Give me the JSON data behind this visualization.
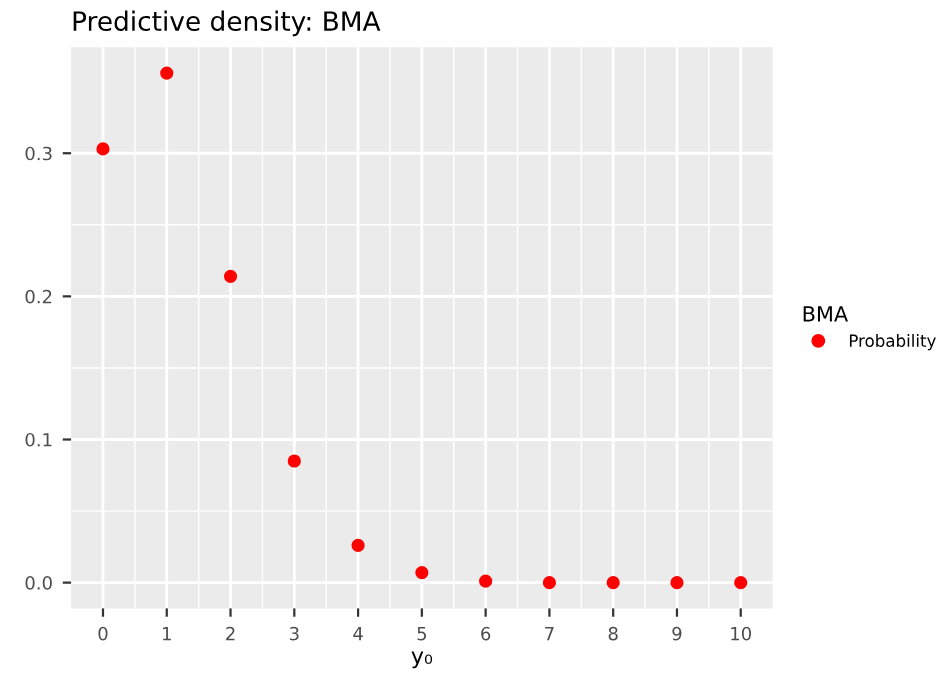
{
  "chart_data": {
    "type": "scatter",
    "title": "Predictive density: BMA",
    "xlabel": "y₀",
    "legend_title": "BMA",
    "x": [
      0,
      1,
      2,
      3,
      4,
      5,
      6,
      7,
      8,
      9,
      10
    ],
    "series": [
      {
        "name": "Probability",
        "color": "#ff0000",
        "values": [
          0.303,
          0.356,
          0.214,
          0.085,
          0.026,
          0.007,
          0.001,
          0.0,
          0.0,
          0.0,
          0.0
        ]
      }
    ],
    "xlim": [
      -0.5,
      10.5
    ],
    "xticks": [
      0,
      1,
      2,
      3,
      4,
      5,
      6,
      7,
      8,
      9,
      10
    ],
    "ylim": [
      -0.018,
      0.374
    ],
    "yticks": [
      {
        "value": 0,
        "label": "0.0"
      },
      {
        "value": 0.1,
        "label": "0.1"
      },
      {
        "value": 0.2,
        "label": "0.2"
      },
      {
        "value": 0.3,
        "label": "0.3"
      }
    ],
    "grid": true,
    "legend": "right",
    "marker": "circle"
  }
}
